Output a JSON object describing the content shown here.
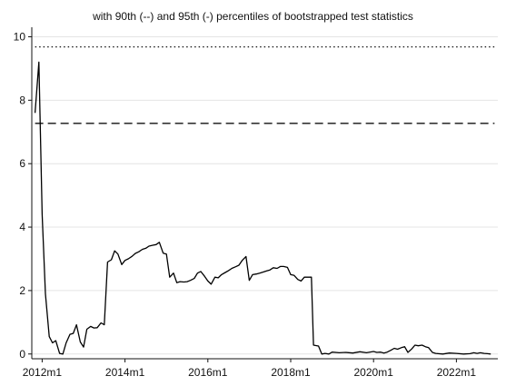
{
  "chart_data": {
    "type": "line",
    "title": "with 90th (--) and 95th (-) percentiles of bootstrapped test statistics",
    "xlabel": "",
    "ylabel": "",
    "xlim": [
      2011.75,
      2023.0
    ],
    "ylim": [
      -0.15,
      10.3
    ],
    "x_ticks": [
      {
        "value": 2012.0,
        "label": "2012m1"
      },
      {
        "value": 2014.0,
        "label": "2014m1"
      },
      {
        "value": 2016.0,
        "label": "2016m1"
      },
      {
        "value": 2018.0,
        "label": "2018m1"
      },
      {
        "value": 2020.0,
        "label": "2020m1"
      },
      {
        "value": 2022.0,
        "label": "2022m1"
      }
    ],
    "y_ticks": [
      {
        "value": 0,
        "label": "0"
      },
      {
        "value": 2,
        "label": "2"
      },
      {
        "value": 4,
        "label": "4"
      },
      {
        "value": 6,
        "label": "6"
      },
      {
        "value": 8,
        "label": "8"
      },
      {
        "value": 10,
        "label": "10"
      }
    ],
    "grid": true,
    "reference_lines": [
      {
        "name": "95th percentile",
        "value": 9.68,
        "style": "dotted"
      },
      {
        "name": "90th percentile",
        "value": 7.27,
        "style": "dashed"
      }
    ],
    "series": [
      {
        "line_color": "#000000",
        "points": [
          [
            2011.83,
            7.6
          ],
          [
            2011.92,
            9.2
          ],
          [
            2012.0,
            4.4
          ],
          [
            2012.08,
            1.9
          ],
          [
            2012.17,
            0.55
          ],
          [
            2012.25,
            0.35
          ],
          [
            2012.33,
            0.42
          ],
          [
            2012.42,
            0.02
          ],
          [
            2012.5,
            0.0
          ],
          [
            2012.58,
            0.35
          ],
          [
            2012.67,
            0.62
          ],
          [
            2012.75,
            0.65
          ],
          [
            2012.83,
            0.92
          ],
          [
            2012.92,
            0.38
          ],
          [
            2013.0,
            0.22
          ],
          [
            2013.08,
            0.78
          ],
          [
            2013.17,
            0.87
          ],
          [
            2013.25,
            0.82
          ],
          [
            2013.33,
            0.83
          ],
          [
            2013.42,
            0.98
          ],
          [
            2013.5,
            0.92
          ],
          [
            2013.58,
            2.9
          ],
          [
            2013.67,
            2.97
          ],
          [
            2013.75,
            3.25
          ],
          [
            2013.83,
            3.15
          ],
          [
            2013.92,
            2.82
          ],
          [
            2014.0,
            2.95
          ],
          [
            2014.08,
            3.0
          ],
          [
            2014.17,
            3.08
          ],
          [
            2014.25,
            3.17
          ],
          [
            2014.33,
            3.22
          ],
          [
            2014.42,
            3.3
          ],
          [
            2014.5,
            3.33
          ],
          [
            2014.58,
            3.4
          ],
          [
            2014.67,
            3.43
          ],
          [
            2014.75,
            3.45
          ],
          [
            2014.83,
            3.52
          ],
          [
            2014.92,
            3.18
          ],
          [
            2015.0,
            3.15
          ],
          [
            2015.08,
            2.42
          ],
          [
            2015.17,
            2.55
          ],
          [
            2015.25,
            2.25
          ],
          [
            2015.33,
            2.28
          ],
          [
            2015.42,
            2.27
          ],
          [
            2015.5,
            2.28
          ],
          [
            2015.58,
            2.32
          ],
          [
            2015.67,
            2.38
          ],
          [
            2015.75,
            2.55
          ],
          [
            2015.83,
            2.6
          ],
          [
            2015.92,
            2.45
          ],
          [
            2016.0,
            2.3
          ],
          [
            2016.08,
            2.2
          ],
          [
            2016.17,
            2.42
          ],
          [
            2016.25,
            2.4
          ],
          [
            2016.33,
            2.5
          ],
          [
            2016.42,
            2.57
          ],
          [
            2016.5,
            2.63
          ],
          [
            2016.58,
            2.7
          ],
          [
            2016.67,
            2.75
          ],
          [
            2016.75,
            2.8
          ],
          [
            2016.83,
            2.95
          ],
          [
            2016.92,
            3.07
          ],
          [
            2017.0,
            2.32
          ],
          [
            2017.08,
            2.5
          ],
          [
            2017.17,
            2.52
          ],
          [
            2017.25,
            2.55
          ],
          [
            2017.33,
            2.58
          ],
          [
            2017.42,
            2.62
          ],
          [
            2017.5,
            2.65
          ],
          [
            2017.58,
            2.72
          ],
          [
            2017.67,
            2.7
          ],
          [
            2017.75,
            2.76
          ],
          [
            2017.83,
            2.76
          ],
          [
            2017.92,
            2.73
          ],
          [
            2018.0,
            2.5
          ],
          [
            2018.08,
            2.48
          ],
          [
            2018.17,
            2.35
          ],
          [
            2018.25,
            2.3
          ],
          [
            2018.33,
            2.42
          ],
          [
            2018.42,
            2.42
          ],
          [
            2018.5,
            2.42
          ],
          [
            2018.55,
            0.28
          ],
          [
            2018.67,
            0.25
          ],
          [
            2018.75,
            0.0
          ],
          [
            2018.83,
            0.02
          ],
          [
            2018.92,
            0.0
          ],
          [
            2019.0,
            0.06
          ],
          [
            2019.17,
            0.04
          ],
          [
            2019.33,
            0.05
          ],
          [
            2019.5,
            0.03
          ],
          [
            2019.67,
            0.07
          ],
          [
            2019.83,
            0.04
          ],
          [
            2020.0,
            0.08
          ],
          [
            2020.08,
            0.05
          ],
          [
            2020.17,
            0.06
          ],
          [
            2020.25,
            0.03
          ],
          [
            2020.33,
            0.06
          ],
          [
            2020.42,
            0.12
          ],
          [
            2020.5,
            0.18
          ],
          [
            2020.58,
            0.15
          ],
          [
            2020.67,
            0.2
          ],
          [
            2020.75,
            0.23
          ],
          [
            2020.83,
            0.05
          ],
          [
            2020.92,
            0.16
          ],
          [
            2021.0,
            0.28
          ],
          [
            2021.08,
            0.26
          ],
          [
            2021.17,
            0.28
          ],
          [
            2021.25,
            0.23
          ],
          [
            2021.33,
            0.2
          ],
          [
            2021.42,
            0.05
          ],
          [
            2021.5,
            0.02
          ],
          [
            2021.67,
            0.0
          ],
          [
            2021.83,
            0.03
          ],
          [
            2022.0,
            0.02
          ],
          [
            2022.17,
            0.0
          ],
          [
            2022.33,
            0.01
          ],
          [
            2022.42,
            0.04
          ],
          [
            2022.5,
            0.02
          ],
          [
            2022.58,
            0.04
          ],
          [
            2022.67,
            0.02
          ],
          [
            2022.75,
            0.01
          ],
          [
            2022.83,
            0.0
          ]
        ]
      }
    ]
  }
}
